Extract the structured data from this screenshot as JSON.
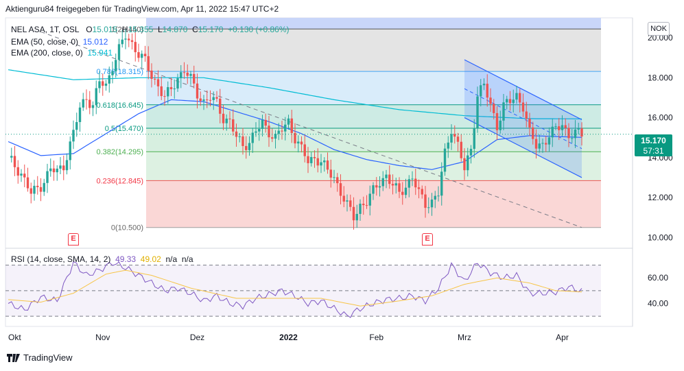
{
  "header": "Aktienguru84 freigegeben für TradingView.com, Apr 11, 2022 15:47 UTC+2",
  "legend": {
    "symbol": "NEL ASA, 1T, OSL",
    "o_label": "O",
    "o": "15.015",
    "h_label": "H",
    "h": "15.355",
    "l_label": "L",
    "l": "14.870",
    "c_label": "C",
    "c": "15.170",
    "change": "+0.130 (+0.86%)",
    "ema50_label": "EMA (50, close, 0)",
    "ema50": "15.012",
    "ema200_label": "EMA (200, close, 0)",
    "ema200": "15.941"
  },
  "currency_button": "NOK",
  "price_tag": {
    "price": "15.170",
    "countdown": "57:31"
  },
  "rsi_legend": {
    "label": "RSI (14, close, SMA, 14, 2)",
    "rsi": "49.33",
    "sma": "49.02",
    "na1": "n/a",
    "na2": "n/a"
  },
  "earnings_marker": "E",
  "branding": "TradingView",
  "colors": {
    "up": "#26a69a",
    "down": "#ef5350",
    "ema50": "#2962ff",
    "ema200": "#00bcd4",
    "rsi": "#7e57c2",
    "rsi_sma": "#f7c548",
    "channel": "#2962ff",
    "tag": "#089981"
  },
  "chart_data": [
    {
      "type": "candlestick",
      "title": "NEL ASA, 1T, OSL",
      "x_ticks": [
        "Okt",
        "Nov",
        "Dez",
        "2022",
        "Feb",
        "Mrz",
        "Apr"
      ],
      "y_ticks": [
        "20.000",
        "18.000",
        "16.000",
        "14.000",
        "12.000",
        "10.000"
      ],
      "ylim": [
        9.7,
        21.0
      ],
      "fib_levels": [
        {
          "ratio": "1",
          "value": "20.440",
          "label": "1(20.440)"
        },
        {
          "ratio": "0.786",
          "value": "18.315",
          "label": "0.786(18.315)"
        },
        {
          "ratio": "0.618",
          "value": "16.645",
          "label": "0.618(16.645)"
        },
        {
          "ratio": "0.5",
          "value": "15.470",
          "label": "0.5(15.470)"
        },
        {
          "ratio": "0.382",
          "value": "14.295",
          "label": "0.382(14.295)"
        },
        {
          "ratio": "0.236",
          "value": "12.845",
          "label": "0.236(12.845)"
        },
        {
          "ratio": "0",
          "value": "10.500",
          "label": "0(10.500)"
        }
      ],
      "close_path": [
        [
          0,
          14.0
        ],
        [
          4,
          13.2
        ],
        [
          7,
          12.2
        ],
        [
          10,
          12.6
        ],
        [
          13,
          13.4
        ],
        [
          15,
          13.3
        ],
        [
          17,
          13.6
        ],
        [
          20,
          15.2
        ],
        [
          22,
          16.5
        ],
        [
          24,
          17.0
        ],
        [
          26,
          16.6
        ],
        [
          28,
          17.8
        ],
        [
          30,
          17.6
        ],
        [
          32,
          18.6
        ],
        [
          34,
          19.4
        ],
        [
          36,
          20.1
        ],
        [
          38,
          19.7
        ],
        [
          40,
          19.2
        ],
        [
          42,
          18.8
        ],
        [
          44,
          18.1
        ],
        [
          46,
          17.6
        ],
        [
          48,
          17.0
        ],
        [
          50,
          17.4
        ],
        [
          52,
          18.0
        ],
        [
          54,
          18.4
        ],
        [
          56,
          17.9
        ],
        [
          58,
          17.2
        ],
        [
          60,
          16.8
        ],
        [
          62,
          17.0
        ],
        [
          64,
          16.7
        ],
        [
          66,
          16.0
        ],
        [
          68,
          15.8
        ],
        [
          70,
          15.0
        ],
        [
          72,
          14.6
        ],
        [
          74,
          14.8
        ],
        [
          76,
          15.3
        ],
        [
          78,
          15.7
        ],
        [
          80,
          15.3
        ],
        [
          82,
          15.0
        ],
        [
          84,
          15.4
        ],
        [
          86,
          15.8
        ],
        [
          88,
          15.0
        ],
        [
          90,
          14.4
        ],
        [
          92,
          13.8
        ],
        [
          94,
          14.0
        ],
        [
          96,
          13.8
        ],
        [
          98,
          13.3
        ],
        [
          100,
          13.0
        ],
        [
          102,
          12.3
        ],
        [
          104,
          11.6
        ],
        [
          106,
          11.0
        ],
        [
          108,
          11.6
        ],
        [
          110,
          11.8
        ],
        [
          112,
          12.3
        ],
        [
          114,
          12.8
        ],
        [
          116,
          13.1
        ],
        [
          118,
          12.6
        ],
        [
          120,
          12.2
        ],
        [
          122,
          12.6
        ],
        [
          124,
          13.0
        ],
        [
          126,
          12.2
        ],
        [
          128,
          11.7
        ],
        [
          130,
          11.8
        ],
        [
          132,
          12.2
        ],
        [
          134,
          14.2
        ],
        [
          136,
          15.5
        ],
        [
          138,
          14.6
        ],
        [
          140,
          13.4
        ],
        [
          142,
          14.4
        ],
        [
          144,
          17.2
        ],
        [
          146,
          17.6
        ],
        [
          148,
          16.6
        ],
        [
          150,
          15.6
        ],
        [
          152,
          16.6
        ],
        [
          154,
          16.8
        ],
        [
          156,
          17.1
        ],
        [
          158,
          16.6
        ],
        [
          160,
          15.2
        ],
        [
          162,
          14.6
        ],
        [
          164,
          14.7
        ],
        [
          166,
          15.1
        ],
        [
          168,
          15.4
        ],
        [
          170,
          15.7
        ],
        [
          172,
          15.1
        ],
        [
          174,
          15.2
        ],
        [
          176,
          15.17
        ]
      ],
      "ema50_path": [
        [
          0,
          14.8
        ],
        [
          10,
          14.1
        ],
        [
          20,
          14.2
        ],
        [
          30,
          15.2
        ],
        [
          40,
          16.2
        ],
        [
          50,
          16.9
        ],
        [
          60,
          16.8
        ],
        [
          70,
          16.3
        ],
        [
          80,
          15.8
        ],
        [
          90,
          15.2
        ],
        [
          100,
          14.4
        ],
        [
          110,
          13.9
        ],
        [
          120,
          13.6
        ],
        [
          130,
          13.4
        ],
        [
          140,
          13.8
        ],
        [
          150,
          14.9
        ],
        [
          160,
          15.1
        ],
        [
          176,
          15.012
        ]
      ],
      "ema200_path": [
        [
          0,
          18.4
        ],
        [
          20,
          17.9
        ],
        [
          40,
          18.0
        ],
        [
          60,
          18.0
        ],
        [
          80,
          17.5
        ],
        [
          100,
          16.9
        ],
        [
          120,
          16.4
        ],
        [
          140,
          16.1
        ],
        [
          160,
          15.95
        ],
        [
          176,
          15.941
        ]
      ],
      "trendline": {
        "from": [
          10,
          20.3
        ],
        "to": [
          176,
          10.5
        ]
      },
      "channel": {
        "upper_from": [
          140,
          18.9
        ],
        "upper_to": [
          176,
          15.9
        ],
        "lower_from": [
          140,
          16.0
        ],
        "lower_to": [
          176,
          13.0
        ]
      },
      "current_price": "15.170",
      "earnings_markers": [
        {
          "x": 30
        },
        {
          "x": 131
        }
      ]
    },
    {
      "type": "line",
      "title": "RSI (14, close, SMA, 14, 2)",
      "y_ticks": [
        "60.00",
        "40.00"
      ],
      "ylim": [
        22,
        80
      ],
      "bands": {
        "upper": 70,
        "mid": 50,
        "lower": 30
      },
      "rsi_path": [
        [
          0,
          40
        ],
        [
          5,
          35
        ],
        [
          10,
          45
        ],
        [
          15,
          42
        ],
        [
          20,
          72
        ],
        [
          24,
          62
        ],
        [
          28,
          66
        ],
        [
          32,
          72
        ],
        [
          36,
          68
        ],
        [
          40,
          62
        ],
        [
          44,
          56
        ],
        [
          48,
          50
        ],
        [
          52,
          52
        ],
        [
          56,
          48
        ],
        [
          60,
          42
        ],
        [
          64,
          46
        ],
        [
          68,
          40
        ],
        [
          72,
          38
        ],
        [
          76,
          44
        ],
        [
          80,
          47
        ],
        [
          84,
          50
        ],
        [
          88,
          46
        ],
        [
          92,
          40
        ],
        [
          96,
          42
        ],
        [
          100,
          36
        ],
        [
          104,
          30
        ],
        [
          108,
          36
        ],
        [
          112,
          40
        ],
        [
          116,
          43
        ],
        [
          120,
          44
        ],
        [
          124,
          46
        ],
        [
          128,
          42
        ],
        [
          132,
          52
        ],
        [
          136,
          70
        ],
        [
          140,
          57
        ],
        [
          144,
          72
        ],
        [
          148,
          64
        ],
        [
          152,
          60
        ],
        [
          156,
          62
        ],
        [
          160,
          48
        ],
        [
          164,
          48
        ],
        [
          168,
          49
        ],
        [
          172,
          53
        ],
        [
          176,
          49.33
        ]
      ],
      "sma_path": [
        [
          0,
          43
        ],
        [
          10,
          41
        ],
        [
          20,
          48
        ],
        [
          30,
          63
        ],
        [
          36,
          66
        ],
        [
          44,
          62
        ],
        [
          56,
          52
        ],
        [
          70,
          44
        ],
        [
          84,
          44
        ],
        [
          96,
          44
        ],
        [
          108,
          38
        ],
        [
          120,
          42
        ],
        [
          130,
          46
        ],
        [
          140,
          55
        ],
        [
          150,
          60
        ],
        [
          160,
          56
        ],
        [
          168,
          50
        ],
        [
          176,
          49.02
        ]
      ]
    }
  ]
}
